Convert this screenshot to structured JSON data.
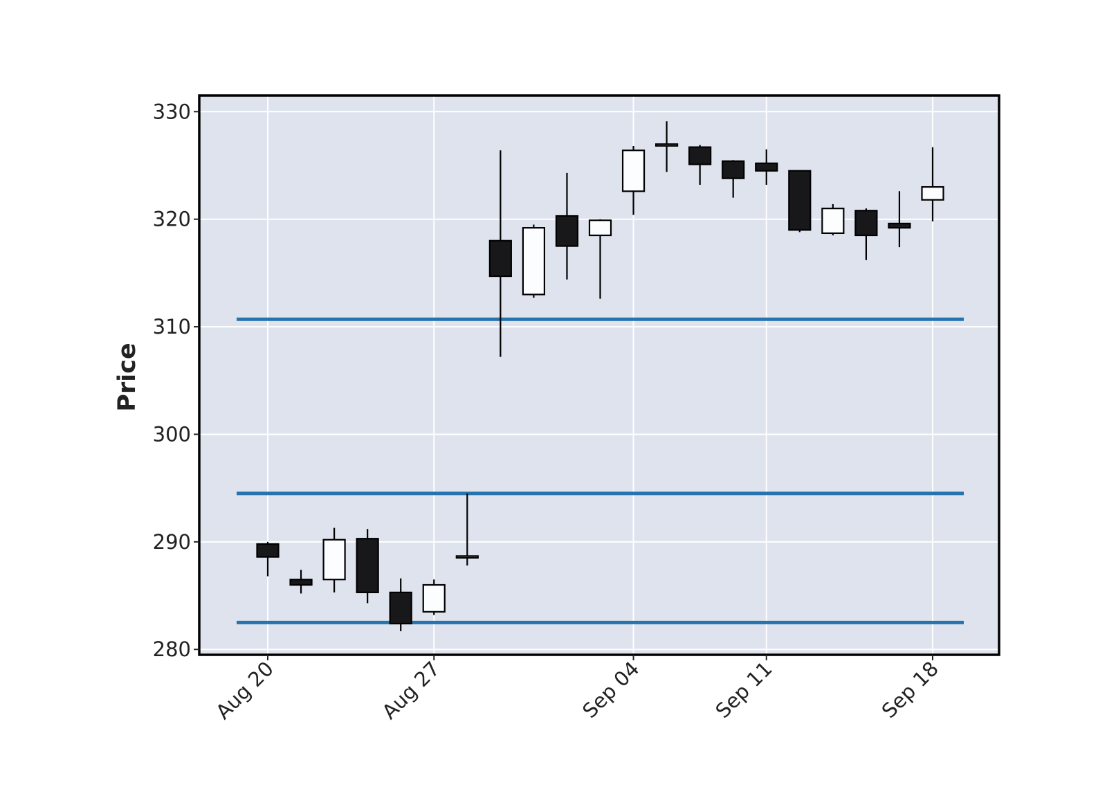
{
  "chart_data": {
    "type": "candlestick",
    "title": "",
    "xlabel": "",
    "ylabel": "Price",
    "ylim": [
      279.5,
      331.5
    ],
    "yticks": [
      280,
      290,
      300,
      310,
      320,
      330
    ],
    "x_tick_labels": [
      "Aug 20",
      "Aug 27",
      "Sep 04",
      "Sep 11",
      "Sep 18"
    ],
    "x_tick_positions": [
      "2020-08-20",
      "2020-08-27",
      "2020-09-04",
      "2020-09-11",
      "2020-09-18"
    ],
    "grid": true,
    "colors": {
      "background": "#dee3ee",
      "grid": "#ffffff",
      "up_candle": "#fcfdfe",
      "down_candle": "#18181a",
      "hlines": "#2673ad"
    },
    "hlines": [
      282.5,
      294.5,
      310.7
    ],
    "candles": [
      {
        "date": "2020-08-20",
        "open": 289.8,
        "high": 290.0,
        "low": 286.8,
        "close": 288.6
      },
      {
        "date": "2020-08-21",
        "open": 286.5,
        "high": 287.4,
        "low": 285.2,
        "close": 286.0
      },
      {
        "date": "2020-08-24",
        "open": 286.5,
        "high": 291.3,
        "low": 285.3,
        "close": 290.2
      },
      {
        "date": "2020-08-25",
        "open": 290.3,
        "high": 291.2,
        "low": 284.3,
        "close": 285.3
      },
      {
        "date": "2020-08-26",
        "open": 285.3,
        "high": 286.6,
        "low": 281.7,
        "close": 282.4
      },
      {
        "date": "2020-08-27",
        "open": 283.5,
        "high": 286.5,
        "low": 283.2,
        "close": 286.0
      },
      {
        "date": "2020-08-28",
        "open": 288.5,
        "high": 294.5,
        "low": 287.8,
        "close": 288.6
      },
      {
        "date": "2020-08-31",
        "open": 318.0,
        "high": 326.4,
        "low": 307.2,
        "close": 314.7
      },
      {
        "date": "2020-09-01",
        "open": 313.0,
        "high": 319.5,
        "low": 312.7,
        "close": 319.2
      },
      {
        "date": "2020-09-02",
        "open": 320.3,
        "high": 324.3,
        "low": 314.4,
        "close": 317.5
      },
      {
        "date": "2020-09-03",
        "open": 318.5,
        "high": 320.0,
        "low": 312.6,
        "close": 319.9
      },
      {
        "date": "2020-09-04",
        "open": 322.6,
        "high": 326.8,
        "low": 320.4,
        "close": 326.4
      },
      {
        "date": "2020-09-08",
        "open": 326.8,
        "high": 329.1,
        "low": 324.4,
        "close": 326.9
      },
      {
        "date": "2020-09-09",
        "open": 326.7,
        "high": 326.9,
        "low": 323.2,
        "close": 325.1
      },
      {
        "date": "2020-09-10",
        "open": 325.4,
        "high": 325.5,
        "low": 322.0,
        "close": 323.8
      },
      {
        "date": "2020-09-11",
        "open": 325.2,
        "high": 326.5,
        "low": 323.2,
        "close": 324.5
      },
      {
        "date": "2020-09-14",
        "open": 324.5,
        "high": 324.5,
        "low": 318.8,
        "close": 319.0
      },
      {
        "date": "2020-09-15",
        "open": 318.7,
        "high": 321.4,
        "low": 318.5,
        "close": 321.0
      },
      {
        "date": "2020-09-16",
        "open": 320.8,
        "high": 321.0,
        "low": 316.2,
        "close": 318.5
      },
      {
        "date": "2020-09-17",
        "open": 319.6,
        "high": 322.6,
        "low": 317.4,
        "close": 319.2
      },
      {
        "date": "2020-09-18",
        "open": 321.8,
        "high": 326.7,
        "low": 319.8,
        "close": 323.0
      }
    ]
  }
}
